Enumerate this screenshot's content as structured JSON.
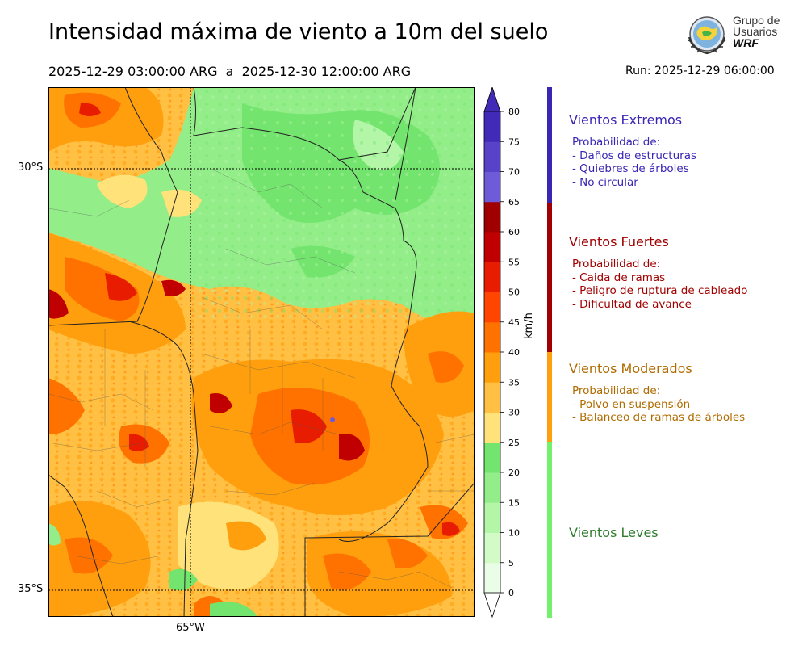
{
  "header": {
    "title": "Intensidad máxima de viento a 10m del suelo",
    "period": "2025-12-29 03:00:00 ARG  a  2025-12-30 12:00:00 ARG",
    "run": "Run: 2025-12-29 06:00:00"
  },
  "logo": {
    "line1": "Grupo de",
    "line2": "Usuarios",
    "line3": "WRF"
  },
  "map": {
    "lat_labels": [
      "30°S",
      "35°S"
    ],
    "lon_labels": [
      "65°W"
    ]
  },
  "colorbar": {
    "unit": "km/h",
    "min": 0,
    "max": 80,
    "ticks": [
      "0",
      "5",
      "10",
      "15",
      "20",
      "25",
      "30",
      "35",
      "40",
      "45",
      "50",
      "55",
      "60",
      "65",
      "70",
      "75",
      "80"
    ],
    "colors": [
      "#eafde6",
      "#d2fbc8",
      "#b4f6a8",
      "#93ee89",
      "#73e46e",
      "#ffe27a",
      "#ffc043",
      "#ff9f0d",
      "#ff7200",
      "#ff4500",
      "#e81c00",
      "#c00000",
      "#a00000",
      "#6e5bd7",
      "#5742c8",
      "#412ab8"
    ]
  },
  "categories": [
    {
      "title": "Vientos Extremos",
      "color": "#3a26b5",
      "subtitle": "Probabilidad de:",
      "lines": [
        "- Daños de estructuras",
        "- Quiebres de árboles",
        "- No circular"
      ]
    },
    {
      "title": "Vientos Fuertes",
      "color": "#a00000",
      "subtitle": "Probabilidad de:",
      "lines": [
        "- Caida de ramas",
        "- Peligro de ruptura de cableado",
        "- Dificultad de avance"
      ]
    },
    {
      "title": "Vientos Moderados",
      "color": "#b06b00",
      "bar_color": "#ff9f0d",
      "subtitle": "Probabilidad de:",
      "lines": [
        "- Polvo en suspensión",
        "- Balanceo de ramas de árboles"
      ]
    },
    {
      "title": "Vientos Leves",
      "color": "#2e7d2e",
      "bar_color": "#73f06e"
    }
  ]
}
